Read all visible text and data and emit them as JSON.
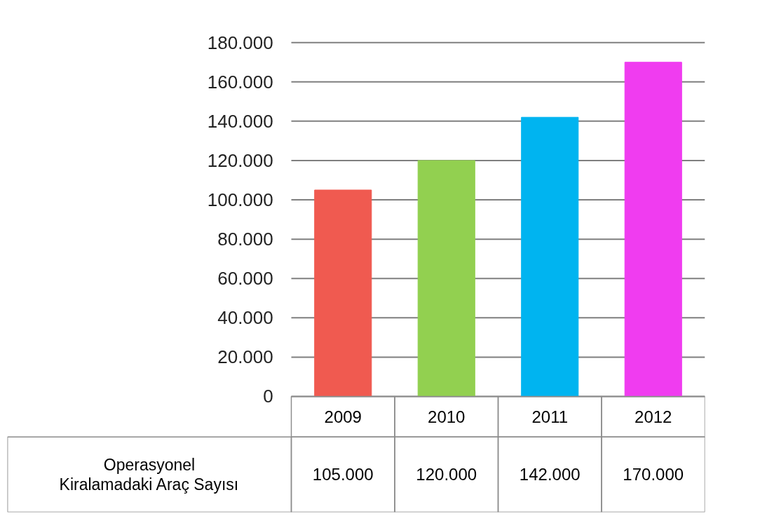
{
  "chart_data": {
    "type": "bar",
    "categories": [
      "2009",
      "2010",
      "2011",
      "2012"
    ],
    "series": [
      {
        "name": "Operasyonel Kiralamadaki Araç Sayısı",
        "colors": [
          "#f05a50",
          "#92d050",
          "#00b4f0",
          "#f03cf0"
        ],
        "values": [
          105000,
          120000,
          142000,
          170000
        ],
        "value_labels": [
          "105.000",
          "120.000",
          "142.000",
          "170.000"
        ]
      }
    ],
    "ylim": [
      0,
      180000
    ],
    "yticks": [
      0,
      {
        "value": 20000,
        "label": "20.000"
      },
      {
        "value": 40000,
        "label": "40.000"
      },
      {
        "value": 60000,
        "label": "60.000"
      },
      {
        "value": 80000,
        "label": "80.000"
      },
      {
        "value": 100000,
        "label": "100.000"
      },
      {
        "value": 120000,
        "label": "120.000"
      },
      {
        "value": 140000,
        "label": "140.000"
      },
      {
        "value": 160000,
        "label": "160.000"
      },
      {
        "value": 180000,
        "label": "180.000"
      }
    ],
    "grid": "y"
  }
}
